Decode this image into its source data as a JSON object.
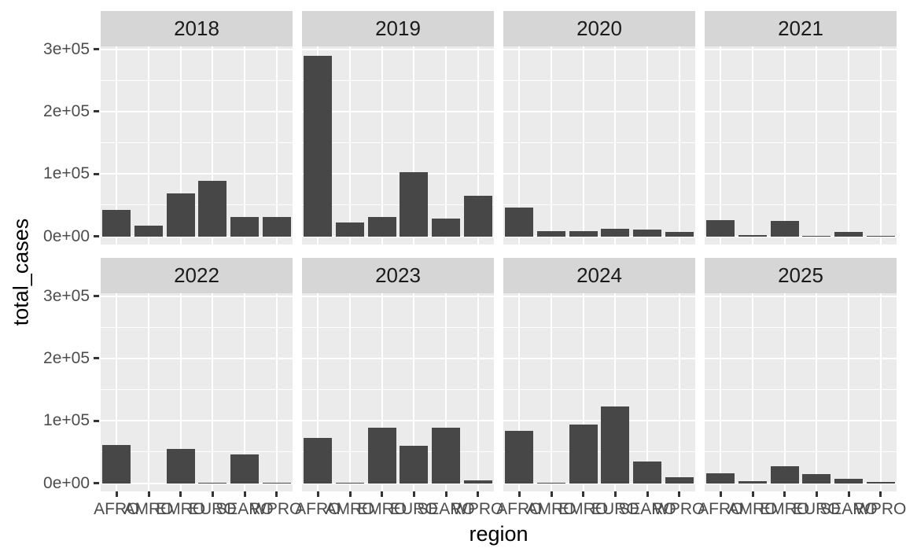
{
  "chart_data": {
    "type": "bar",
    "title": "",
    "faceted_by": "year",
    "xlabel": "region",
    "ylabel": "total_cases",
    "categories": [
      "AFRO",
      "AMRO",
      "EMRO",
      "EURO",
      "SEARO",
      "WPRO"
    ],
    "y_tick_labels": [
      "3e+05",
      "2e+05",
      "1e+05",
      "0e+00"
    ],
    "y_tick_values": [
      300000,
      200000,
      100000,
      0
    ],
    "ylim": [
      0,
      320000
    ],
    "grid": "major-and-minor, white on grey panel",
    "legend": "none",
    "facets": [
      {
        "label": "2018",
        "values": [
          43000,
          18000,
          69000,
          89000,
          31000,
          31000
        ]
      },
      {
        "label": "2019",
        "values": [
          290000,
          23000,
          31000,
          104000,
          29000,
          65000
        ]
      },
      {
        "label": "2020",
        "values": [
          47000,
          9000,
          9000,
          12000,
          11000,
          7000
        ]
      },
      {
        "label": "2021",
        "values": [
          27000,
          2500,
          25000,
          500,
          8000,
          1800
        ]
      },
      {
        "label": "2022",
        "values": [
          62000,
          0,
          55000,
          1500,
          47000,
          1500
        ]
      },
      {
        "label": "2023",
        "values": [
          73000,
          500,
          90000,
          60000,
          90000,
          5500
        ]
      },
      {
        "label": "2024",
        "values": [
          85000,
          1200,
          94000,
          124000,
          35000,
          9500
        ]
      },
      {
        "label": "2025",
        "values": [
          16000,
          4000,
          28000,
          15000,
          8000,
          2500
        ]
      }
    ],
    "colors": {
      "bar": "#474747",
      "panel_bg": "#EBEBEB",
      "strip_bg": "#D6D6D6",
      "grid": "#FFFFFF",
      "axis_text": "#4D4D4D",
      "strip_text": "#1A1A1A",
      "title_text": "#000000",
      "tick_mark": "#333333"
    }
  }
}
